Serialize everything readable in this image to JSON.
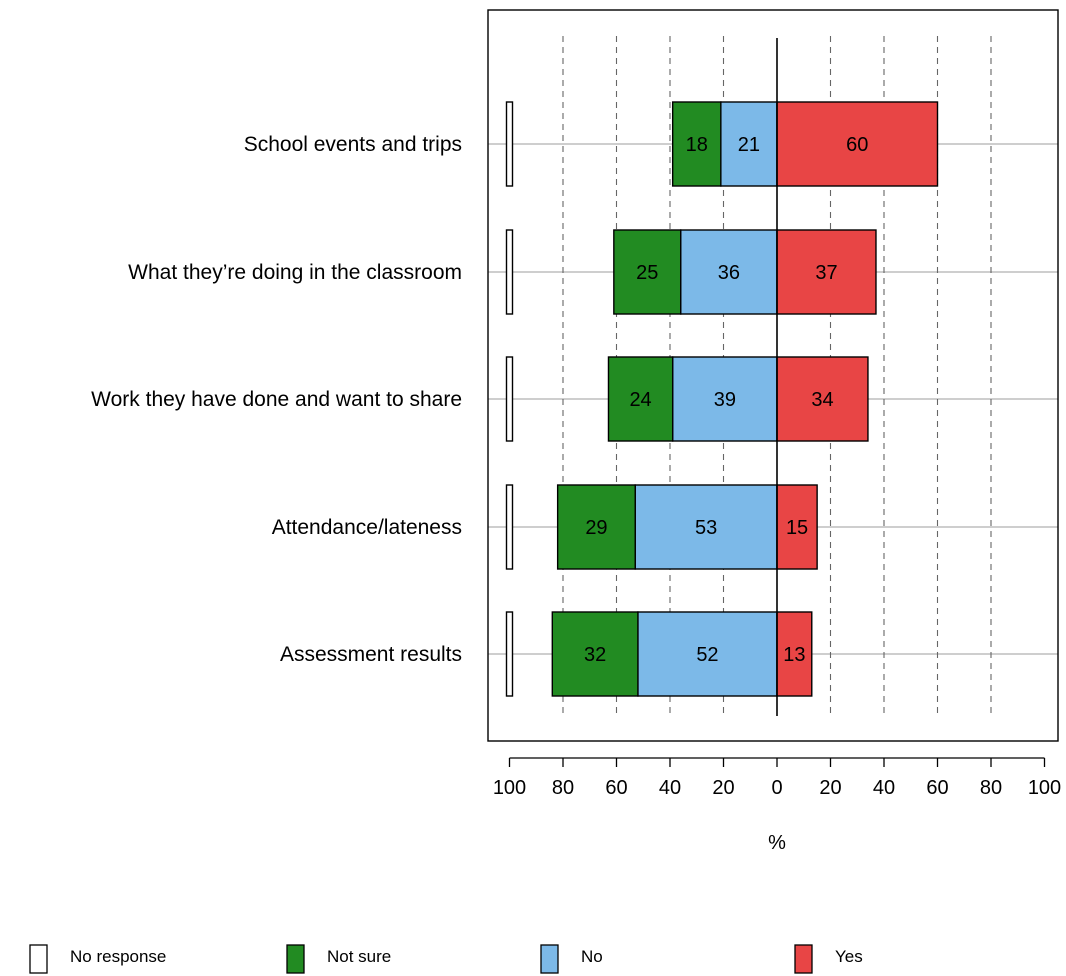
{
  "chart_data": {
    "type": "bar",
    "orientation": "horizontal",
    "stacked": true,
    "diverging": true,
    "categories": [
      "School events and trips",
      "What they’re doing in the classroom",
      "Work they have done and want to share",
      "Attendance/lateness",
      "Assessment results"
    ],
    "series": [
      {
        "name": "No response",
        "color": "#ffffff",
        "values": [
          1,
          1,
          1,
          1,
          1
        ],
        "display_labels": [
          "",
          "",
          "",
          "",
          ""
        ]
      },
      {
        "name": "Not sure",
        "color": "#228b22",
        "values": [
          18,
          25,
          24,
          29,
          32
        ],
        "display_labels": [
          "18",
          "25",
          "24",
          "29",
          "32"
        ]
      },
      {
        "name": "No",
        "color": "#7cb9e8",
        "values": [
          21,
          36,
          39,
          53,
          52
        ],
        "display_labels": [
          "21",
          "36",
          "39",
          "53",
          "52"
        ]
      },
      {
        "name": "Yes",
        "color": "#e84545",
        "values": [
          60,
          37,
          34,
          15,
          13
        ],
        "display_labels": [
          "60",
          "37",
          "34",
          "15",
          "13"
        ]
      }
    ],
    "xlabel": "%",
    "xlim": [
      -100,
      100
    ],
    "xticks": [
      -100,
      -80,
      -60,
      -40,
      -20,
      0,
      20,
      40,
      60,
      80,
      100
    ],
    "xtick_labels": [
      "100",
      "80",
      "60",
      "40",
      "20",
      "0",
      "20",
      "40",
      "60",
      "80",
      "100"
    ],
    "grid": true,
    "legend_position": "bottom"
  }
}
